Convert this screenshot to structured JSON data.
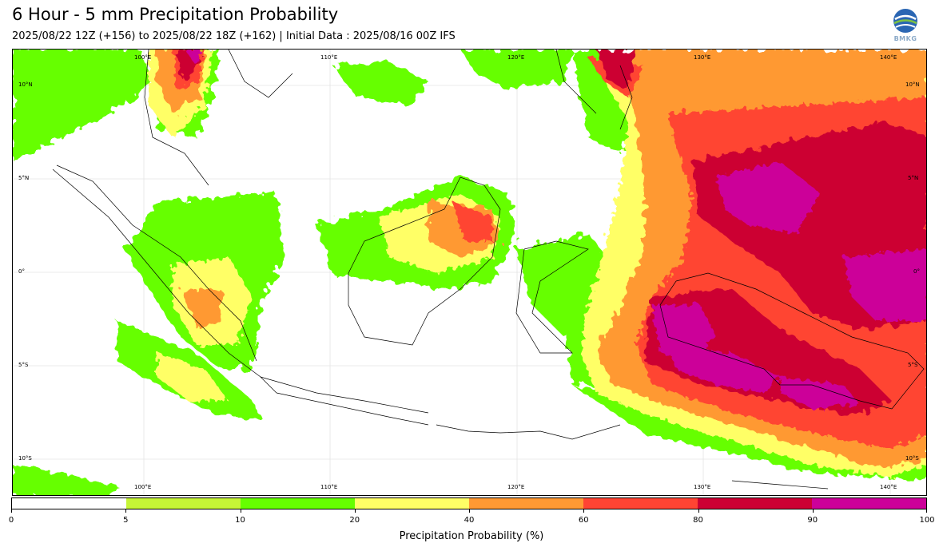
{
  "header": {
    "title": "6 Hour - 5 mm Precipitation Probability",
    "subtitle": "2025/08/22 12Z (+156) to 2025/08/22 18Z (+162) | Initial Data : 2025/08/16 00Z IFS",
    "logo_text": "BMKG"
  },
  "map": {
    "lon_labels_top": [
      "100°E",
      "110°E",
      "120°E",
      "130°E",
      "140°E"
    ],
    "lon_labels_bottom": [
      "100°E",
      "110°E",
      "120°E",
      "130°E",
      "140°E"
    ],
    "lat_labels_left": [
      "10°N",
      "5°N",
      "0°",
      "5°S",
      "10°S"
    ],
    "lat_labels_right": [
      "10°N",
      "5°N",
      "0°",
      "5°S",
      "10°S"
    ],
    "colors": {
      "p5_10": "#c6f536",
      "p10_20": "#66ff00",
      "p20_40": "#ffff66",
      "p40_60": "#ff9933",
      "p60_80": "#ff4433",
      "p80_90": "#cc0033",
      "p90_100": "#cc0099"
    }
  },
  "colorbar": {
    "label": "Precipitation Probability (%)",
    "ticks": [
      "0",
      "5",
      "10",
      "20",
      "40",
      "60",
      "80",
      "90",
      "100"
    ],
    "colors": [
      "#ffffff",
      "#c6f536",
      "#66ff00",
      "#ffff66",
      "#ff9933",
      "#ff4433",
      "#cc0033",
      "#cc0099"
    ]
  }
}
